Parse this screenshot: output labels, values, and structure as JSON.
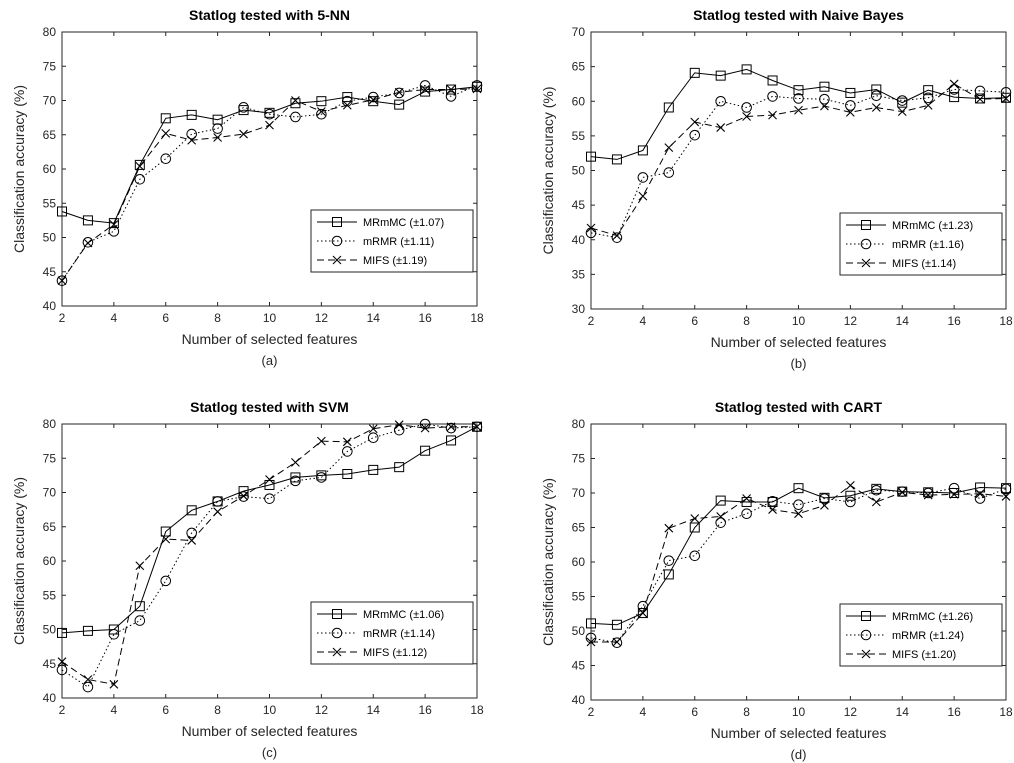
{
  "chart_data": [
    {
      "type": "line",
      "panel": "(a)",
      "title": "Statlog tested with 5-NN",
      "xlabel": "Number of selected features",
      "ylabel": "Classification accuracy (%)",
      "xlim": [
        2,
        18
      ],
      "ylim": [
        40,
        80
      ],
      "xticks": [
        2,
        4,
        6,
        8,
        10,
        12,
        14,
        16,
        18
      ],
      "yticks": [
        40,
        45,
        50,
        55,
        60,
        65,
        70,
        75,
        80
      ],
      "legend_position": "lower-right",
      "x": [
        2,
        3,
        4,
        5,
        6,
        7,
        8,
        9,
        10,
        11,
        12,
        13,
        14,
        15,
        16,
        17,
        18
      ],
      "series": [
        {
          "name": "MRmMC (±1.07)",
          "marker": "square",
          "style": "solid",
          "values": [
            53.8,
            52.5,
            52.1,
            60.6,
            67.4,
            67.9,
            67.2,
            68.6,
            68.2,
            69.6,
            69.9,
            70.5,
            69.9,
            69.4,
            71.3,
            71.6,
            72.0
          ]
        },
        {
          "name": "mRMR (±1.11)",
          "marker": "circle",
          "style": "dotted",
          "values": [
            43.7,
            49.3,
            50.9,
            58.5,
            61.5,
            65.1,
            65.9,
            69.0,
            68.0,
            67.6,
            68.0,
            69.9,
            70.5,
            71.1,
            72.2,
            70.6,
            72.2
          ]
        },
        {
          "name": "MIFS (±1.19)",
          "marker": "x",
          "style": "dashed",
          "values": [
            43.7,
            49.2,
            51.9,
            60.4,
            65.2,
            64.2,
            64.6,
            65.1,
            66.4,
            70.0,
            68.4,
            69.3,
            70.1,
            71.2,
            71.6,
            71.6,
            71.7
          ]
        }
      ]
    },
    {
      "type": "line",
      "panel": "(b)",
      "title": "Statlog tested with Naive Bayes",
      "xlabel": "Number of selected features",
      "ylabel": "Classification accuracy (%)",
      "xlim": [
        2,
        18
      ],
      "ylim": [
        30,
        70
      ],
      "xticks": [
        2,
        4,
        6,
        8,
        10,
        12,
        14,
        16,
        18
      ],
      "yticks": [
        30,
        35,
        40,
        45,
        50,
        55,
        60,
        65,
        70
      ],
      "legend_position": "lower-right",
      "x": [
        2,
        3,
        4,
        5,
        6,
        7,
        8,
        9,
        10,
        11,
        12,
        13,
        14,
        15,
        16,
        17,
        18
      ],
      "series": [
        {
          "name": "MRmMC (±1.23)",
          "marker": "square",
          "style": "solid",
          "values": [
            52.0,
            51.6,
            52.9,
            59.1,
            64.1,
            63.7,
            64.6,
            63.0,
            61.6,
            62.1,
            61.2,
            61.7,
            59.8,
            61.6,
            60.6,
            60.4,
            60.5
          ]
        },
        {
          "name": "mRMR (±1.16)",
          "marker": "circle",
          "style": "dotted",
          "values": [
            41.0,
            40.3,
            49.0,
            49.7,
            55.1,
            60.0,
            59.1,
            60.7,
            60.4,
            60.3,
            59.4,
            60.8,
            60.1,
            60.5,
            61.7,
            61.5,
            61.3
          ]
        },
        {
          "name": "MIFS (±1.14)",
          "marker": "x",
          "style": "dashed",
          "values": [
            41.7,
            40.6,
            46.3,
            53.3,
            57.0,
            56.2,
            57.8,
            58.0,
            58.7,
            59.3,
            58.4,
            59.1,
            58.5,
            59.4,
            62.5,
            60.3,
            60.4
          ]
        }
      ]
    },
    {
      "type": "line",
      "panel": "(c)",
      "title": "Statlog tested with SVM",
      "xlabel": "Number of selected features",
      "ylabel": "Classification accuracy (%)",
      "xlim": [
        2,
        18
      ],
      "ylim": [
        40,
        80
      ],
      "xticks": [
        2,
        4,
        6,
        8,
        10,
        12,
        14,
        16,
        18
      ],
      "yticks": [
        40,
        45,
        50,
        55,
        60,
        65,
        70,
        75,
        80
      ],
      "legend_position": "lower-right",
      "x": [
        2,
        3,
        4,
        5,
        6,
        7,
        8,
        9,
        10,
        11,
        12,
        13,
        14,
        15,
        16,
        17,
        18
      ],
      "series": [
        {
          "name": "MRmMC (±1.06)",
          "marker": "square",
          "style": "solid",
          "values": [
            49.5,
            49.8,
            50.0,
            53.4,
            64.3,
            67.4,
            68.7,
            70.2,
            71.1,
            72.2,
            72.5,
            72.7,
            73.3,
            73.7,
            76.1,
            77.6,
            79.6
          ]
        },
        {
          "name": "mRMR (±1.14)",
          "marker": "circle",
          "style": "dotted",
          "values": [
            44.1,
            41.6,
            49.3,
            51.3,
            57.1,
            64.1,
            68.7,
            69.4,
            69.1,
            71.7,
            72.2,
            76.0,
            78.0,
            79.1,
            80.0,
            79.4,
            79.6
          ]
        },
        {
          "name": "MIFS (±1.12)",
          "marker": "x",
          "style": "dashed",
          "values": [
            45.3,
            42.7,
            42.0,
            59.3,
            63.2,
            63.0,
            67.2,
            69.5,
            71.9,
            74.4,
            77.5,
            77.4,
            79.3,
            79.9,
            79.4,
            79.6,
            79.6
          ]
        }
      ]
    },
    {
      "type": "line",
      "panel": "(d)",
      "title": "Statlog tested with CART",
      "xlabel": "Number of selected features",
      "ylabel": "Classification accuracy (%)",
      "xlim": [
        2,
        18
      ],
      "ylim": [
        40,
        80
      ],
      "xticks": [
        2,
        4,
        6,
        8,
        10,
        12,
        14,
        16,
        18
      ],
      "yticks": [
        40,
        45,
        50,
        55,
        60,
        65,
        70,
        75,
        80
      ],
      "legend_position": "lower-right",
      "x": [
        2,
        3,
        4,
        5,
        6,
        7,
        8,
        9,
        10,
        11,
        12,
        13,
        14,
        15,
        16,
        17,
        18
      ],
      "series": [
        {
          "name": "MRmMC (±1.26)",
          "marker": "square",
          "style": "solid",
          "values": [
            51.1,
            50.9,
            52.6,
            58.2,
            65.0,
            68.9,
            68.7,
            68.7,
            70.7,
            69.3,
            69.6,
            70.6,
            70.2,
            70.1,
            70.0,
            70.8,
            70.7
          ]
        },
        {
          "name": "mRMR (±1.24)",
          "marker": "circle",
          "style": "dotted",
          "values": [
            49.0,
            48.3,
            53.6,
            60.2,
            60.9,
            65.7,
            67.0,
            68.8,
            68.3,
            69.2,
            68.7,
            70.4,
            70.2,
            70.0,
            70.7,
            69.2,
            70.6
          ]
        },
        {
          "name": "MIFS (±1.20)",
          "marker": "x",
          "style": "dashed",
          "values": [
            48.4,
            48.4,
            52.6,
            64.9,
            66.3,
            66.6,
            69.2,
            67.6,
            67.0,
            68.2,
            71.1,
            68.7,
            70.1,
            69.7,
            69.8,
            69.9,
            69.5
          ]
        }
      ]
    }
  ]
}
